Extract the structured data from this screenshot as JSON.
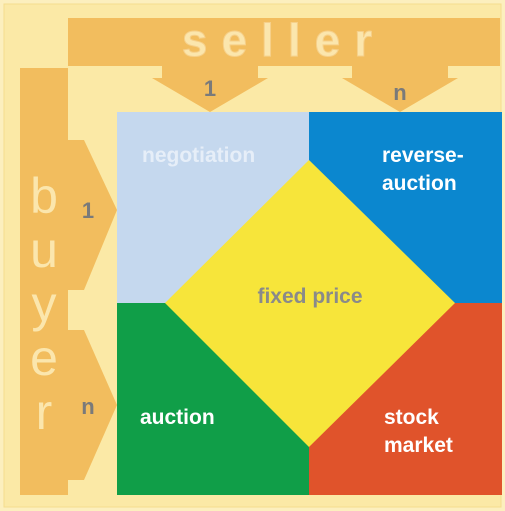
{
  "seller": "seller",
  "buyer": "buyer",
  "seller_columns": [
    "1",
    "n"
  ],
  "buyer_rows": [
    "1",
    "n"
  ],
  "quadrants": [
    {
      "lines": [
        "negotiation"
      ]
    },
    {
      "lines": [
        "reverse-",
        "auction"
      ]
    },
    {
      "lines": [
        "auction"
      ]
    },
    {
      "lines": [
        "stock",
        "market"
      ]
    }
  ],
  "center": "fixed price"
}
